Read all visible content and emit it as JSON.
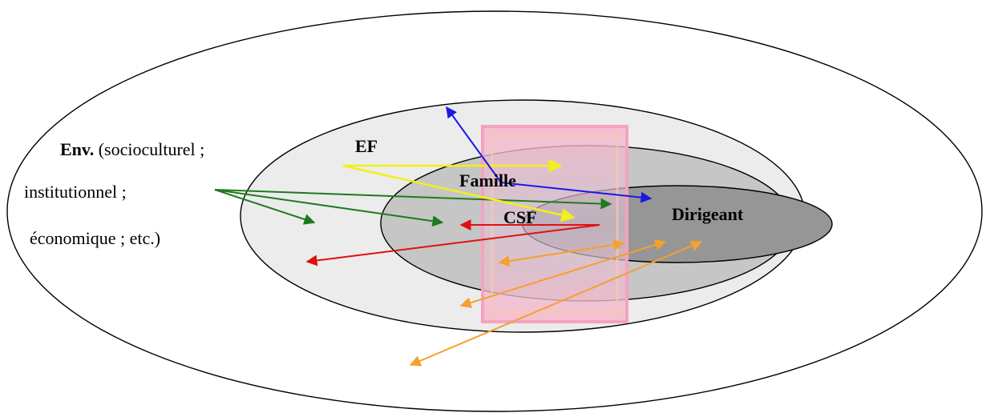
{
  "labels": {
    "env_bold": "Env.",
    "env_line1": "(socioculturel ;",
    "env_line2": "institutionnel ;",
    "env_line3": "économique ; etc.)",
    "ef": "EF",
    "famille": "Famille",
    "csf": "CSF",
    "dirigeant": "Dirigeant"
  },
  "colors": {
    "outer": "#ffffff",
    "ef_zone": "#ececec",
    "famille_zone": "#c6c6c6",
    "dirigeant_zone": "#969696",
    "csf_box": "#f4a3bd",
    "green": "#1f7a1f",
    "red": "#e01010",
    "yellow": "#f2ef1c",
    "blue": "#1a1ae0",
    "orange": "#f5a030"
  }
}
